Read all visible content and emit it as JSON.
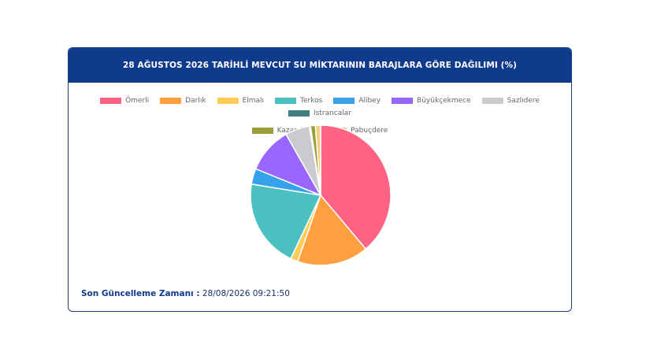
{
  "header": {
    "title": "28 AĞUSTOS 2026 TARİHLİ MEVCUT SU MİKTARININ BARAJLARA GÖRE DAĞILIMI (%)"
  },
  "footer": {
    "label": "Son Güncelleme Zamanı :",
    "value": "28/08/2026 09:21:50"
  },
  "chart_data": {
    "type": "pie",
    "title": "28 AĞUSTOS 2026 TARİHLİ MEVCUT SU MİKTARININ BARAJLARA GÖRE DAĞILIMI (%)",
    "legend_position": "top",
    "categories": [
      "Ömerli",
      "Darlık",
      "Elmalı",
      "Terkos",
      "Alibey",
      "Büyükçekmece",
      "Sazlıdere",
      "Istrancalar",
      "Kazandere",
      "Pabuçdere"
    ],
    "values": [
      38.8,
      16.4,
      1.7,
      20.5,
      3.6,
      10.6,
      5.6,
      0.3,
      1.1,
      1.2
    ],
    "colors": [
      "#ff6384",
      "#ff9f40",
      "#ffcd56",
      "#4bc0c0",
      "#36a2eb",
      "#9966ff",
      "#c9cbcf",
      "#3f7f80",
      "#9c9e3a",
      "#efd080"
    ]
  }
}
